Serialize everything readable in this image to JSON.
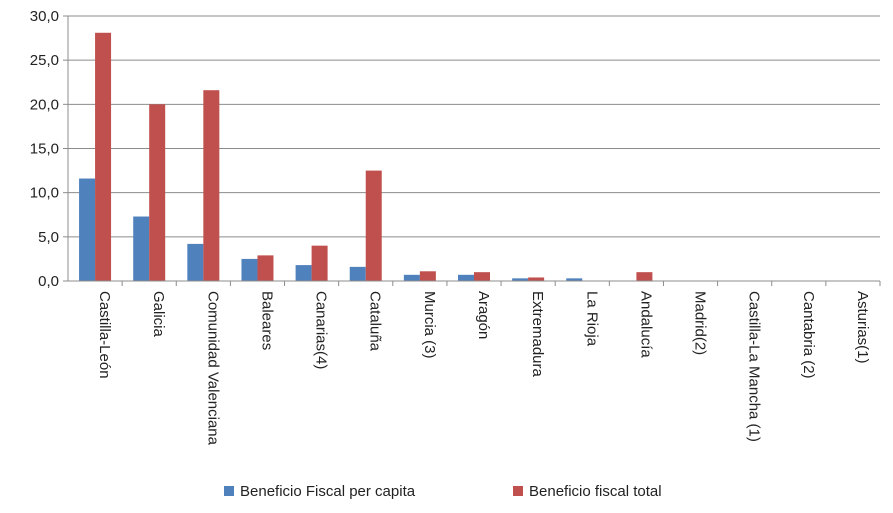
{
  "chart_data": {
    "type": "bar",
    "title": "",
    "xlabel": "",
    "ylabel": "",
    "ylim": [
      0,
      30
    ],
    "yticks": [
      "0,0",
      "5,0",
      "10,0",
      "15,0",
      "20,0",
      "25,0",
      "30,0"
    ],
    "grid": true,
    "legend_position": "bottom",
    "categories": [
      "Castilla-León",
      "Galicia",
      "Comunidad Valenciana",
      "Baleares",
      "Canarias(4)",
      "Cataluña",
      "Murcia (3)",
      "Aragón",
      "Extremadura",
      "La Rioja",
      "Andalucía",
      "Madrid(2)",
      "Castilla-La Mancha (1)",
      "Cantabria (2)",
      "Asturias(1)"
    ],
    "series": [
      {
        "name": "Beneficio Fiscal per capita",
        "color": "#4F81BD",
        "values": [
          11.6,
          7.3,
          4.2,
          2.5,
          1.8,
          1.6,
          0.7,
          0.7,
          0.3,
          0.3,
          0.0,
          0.0,
          0.0,
          0.0,
          0.0
        ]
      },
      {
        "name": "Beneficio fiscal total",
        "color": "#C0504D",
        "values": [
          28.1,
          20.0,
          21.6,
          2.9,
          4.0,
          12.5,
          1.1,
          1.0,
          0.4,
          0.0,
          1.0,
          0.0,
          0.0,
          0.0,
          0.0
        ]
      }
    ]
  }
}
